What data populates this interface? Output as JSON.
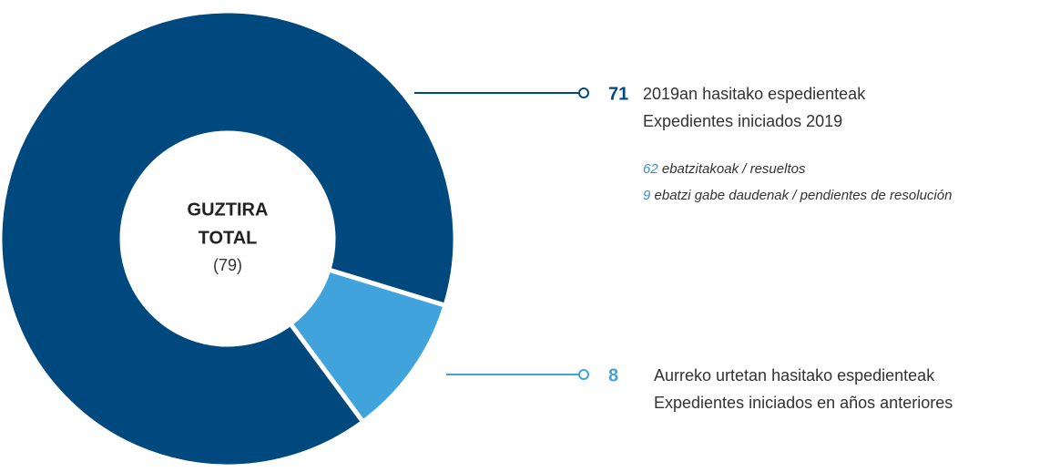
{
  "chart_data": {
    "type": "donut",
    "center_text": [
      "GUZTIRA",
      "TOTAL"
    ],
    "total": 79,
    "total_label": "(79)",
    "values": [
      71,
      8
    ],
    "colors": [
      "#00497e",
      "#41a3dc"
    ],
    "labels": [
      [
        "2019an hasitako espedienteak",
        "Expedientes iniciados 2019"
      ],
      [
        "Aurreko urtetan  hasitako espedienteak",
        "Expedientes iniciados en años anteriores"
      ]
    ],
    "breakdown": [
      {
        "value": 62,
        "label": "ebatzitakoak / resueltos"
      },
      {
        "value": 9,
        "label": "ebatzi gabe daudenak / pendientes de resolución"
      }
    ]
  }
}
